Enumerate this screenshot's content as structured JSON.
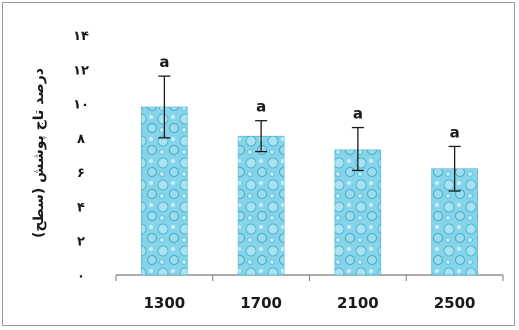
{
  "chart_data": {
    "type": "bar",
    "title": "",
    "xlabel": "",
    "ylabel": "درصد تاج پوشش (سطح)",
    "categories": [
      "1300",
      "1700",
      "2100",
      "2500"
    ],
    "values": [
      9.8,
      8.1,
      7.3,
      6.2
    ],
    "error_low": [
      8.0,
      7.2,
      6.1,
      4.9
    ],
    "error_high": [
      11.6,
      9.0,
      8.6,
      7.5
    ],
    "significance": [
      "a",
      "a",
      "a",
      "a"
    ],
    "ylim": [
      0,
      14
    ],
    "yticks": [
      0,
      2,
      4,
      6,
      8,
      10,
      12,
      14
    ],
    "ytick_labels": [
      "۰",
      "۲",
      "۴",
      "۶",
      "۸",
      "۱۰",
      "۱۲",
      "۱۴"
    ],
    "bar_color": "#7fd0e6",
    "bar_accent": "#3aa8c8",
    "grid": false,
    "legend": "none"
  }
}
